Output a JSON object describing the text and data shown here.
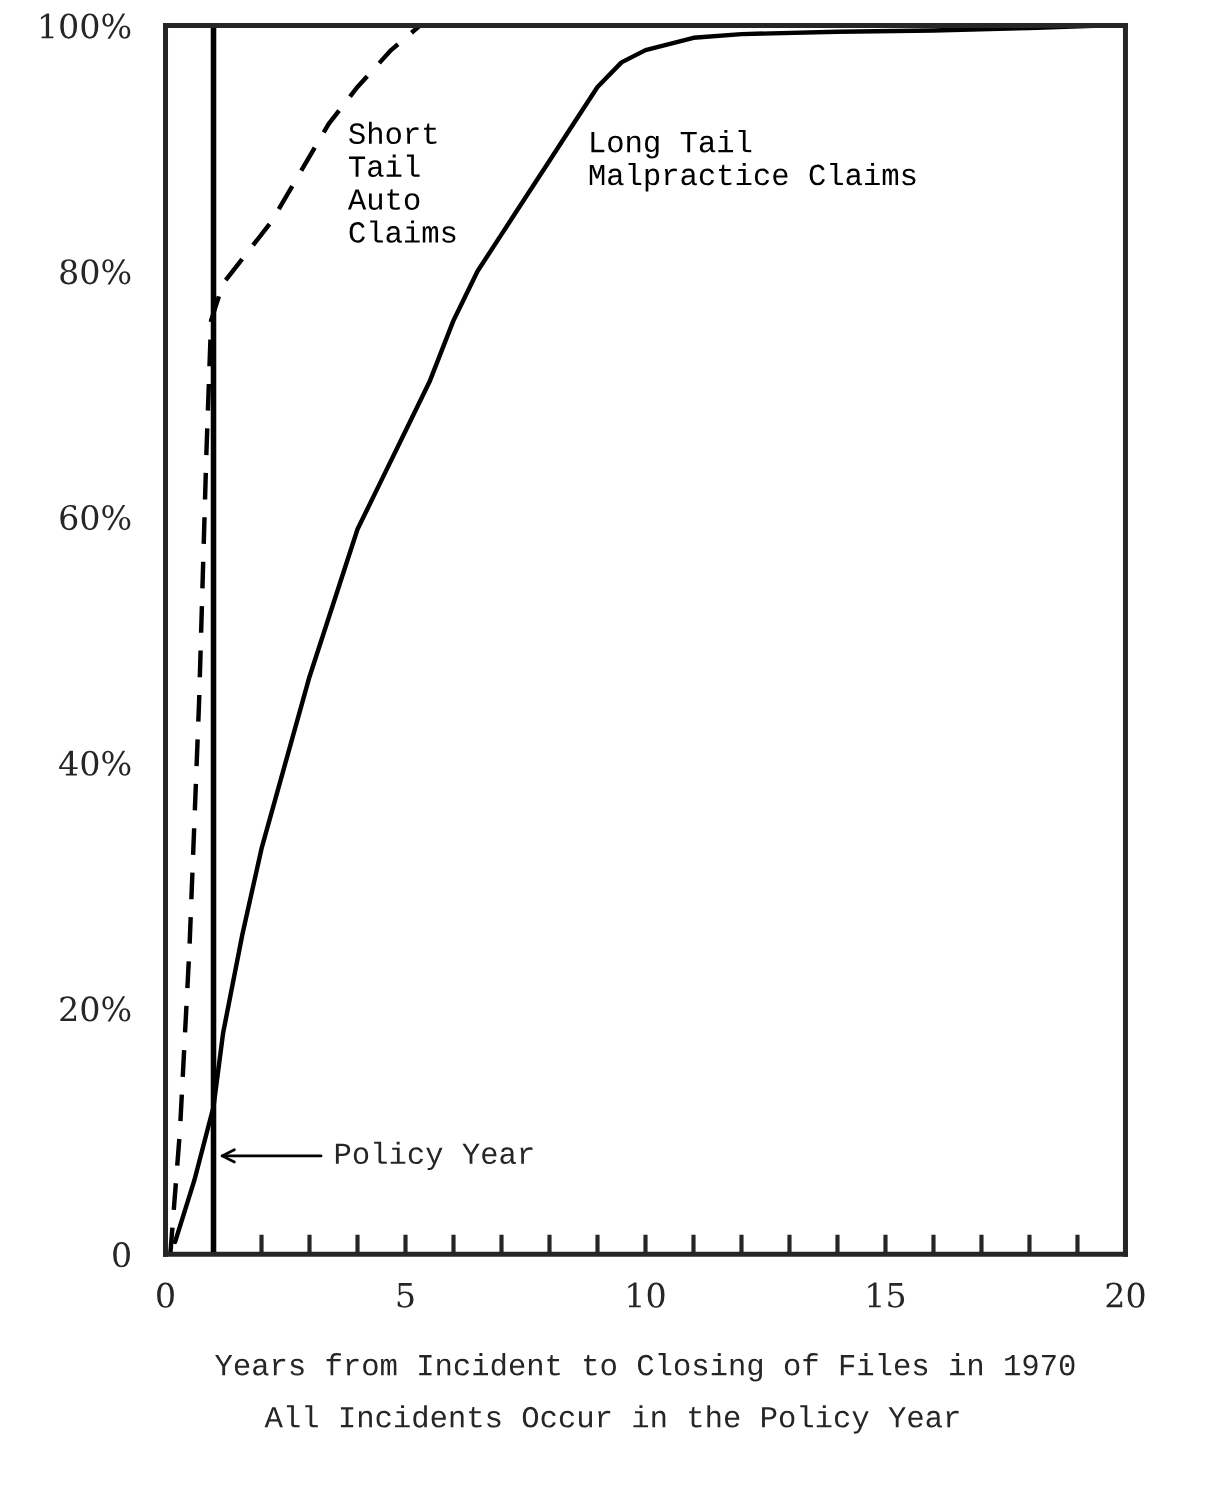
{
  "chart_data": {
    "type": "line",
    "xlabel": "Years from Incident to Closing of Files in 1970",
    "annotations": [
      "All Incidents Occur in the Policy Year"
    ],
    "xlim": [
      0,
      20
    ],
    "ylim": [
      0,
      100
    ],
    "xticks": [
      0,
      {
        "value": 1,
        "label": null
      },
      {
        "value": 2,
        "label": null
      },
      {
        "value": 3,
        "label": null
      },
      {
        "value": 4,
        "label": null
      },
      5,
      {
        "value": 6,
        "label": null
      },
      {
        "value": 7,
        "label": null
      },
      {
        "value": 8,
        "label": null
      },
      {
        "value": 9,
        "label": null
      },
      10,
      {
        "value": 11,
        "label": null
      },
      {
        "value": 12,
        "label": null
      },
      {
        "value": 13,
        "label": null
      },
      {
        "value": 14,
        "label": null
      },
      15,
      {
        "value": 16,
        "label": null
      },
      {
        "value": 17,
        "label": null
      },
      {
        "value": 18,
        "label": null
      },
      {
        "value": 19,
        "label": null
      },
      20
    ],
    "yticks": [
      0,
      {
        "value": 20,
        "label": "20%"
      },
      {
        "value": 40,
        "label": "40%"
      },
      {
        "value": 60,
        "label": "60%"
      },
      {
        "value": 80,
        "label": "80%"
      },
      {
        "value": 100,
        "label": "100%"
      }
    ],
    "grid": false,
    "legend": false,
    "marker": "none",
    "ref_lines": [
      {
        "axis": "x",
        "value": 1,
        "label": "Policy Year",
        "color": "#000000",
        "line_style": "solid"
      }
    ],
    "series": [
      {
        "name": "Short\nTail\nAuto\nClaims",
        "color": "#000000",
        "line_style": "dashed",
        "x": [
          0.1,
          0.3,
          0.5,
          0.7,
          0.85,
          0.95,
          1.2,
          1.6,
          2.2,
          2.8,
          3.4,
          4.0,
          4.7,
          5.3
        ],
        "values": [
          0,
          10,
          25,
          45,
          65,
          76,
          79,
          81,
          84,
          88,
          92,
          95,
          98,
          100
        ]
      },
      {
        "name": "Long Tail\nMalpractice Claims",
        "color": "#000000",
        "line_style": "solid",
        "x": [
          0.2,
          0.6,
          1.0,
          1.2,
          1.6,
          2.0,
          2.5,
          3.0,
          3.5,
          4.0,
          4.5,
          5.0,
          5.5,
          6.0,
          6.5,
          7.0,
          7.5,
          8.0,
          8.5,
          9.0,
          9.5,
          10,
          11,
          12,
          14,
          16,
          18,
          19.5
        ],
        "values": [
          1,
          6,
          12,
          18,
          26,
          33,
          40,
          47,
          53,
          59,
          63,
          67,
          71,
          76,
          80,
          83,
          86,
          89,
          92,
          95,
          97,
          98,
          99,
          99.3,
          99.5,
          99.6,
          99.8,
          100
        ]
      }
    ]
  }
}
